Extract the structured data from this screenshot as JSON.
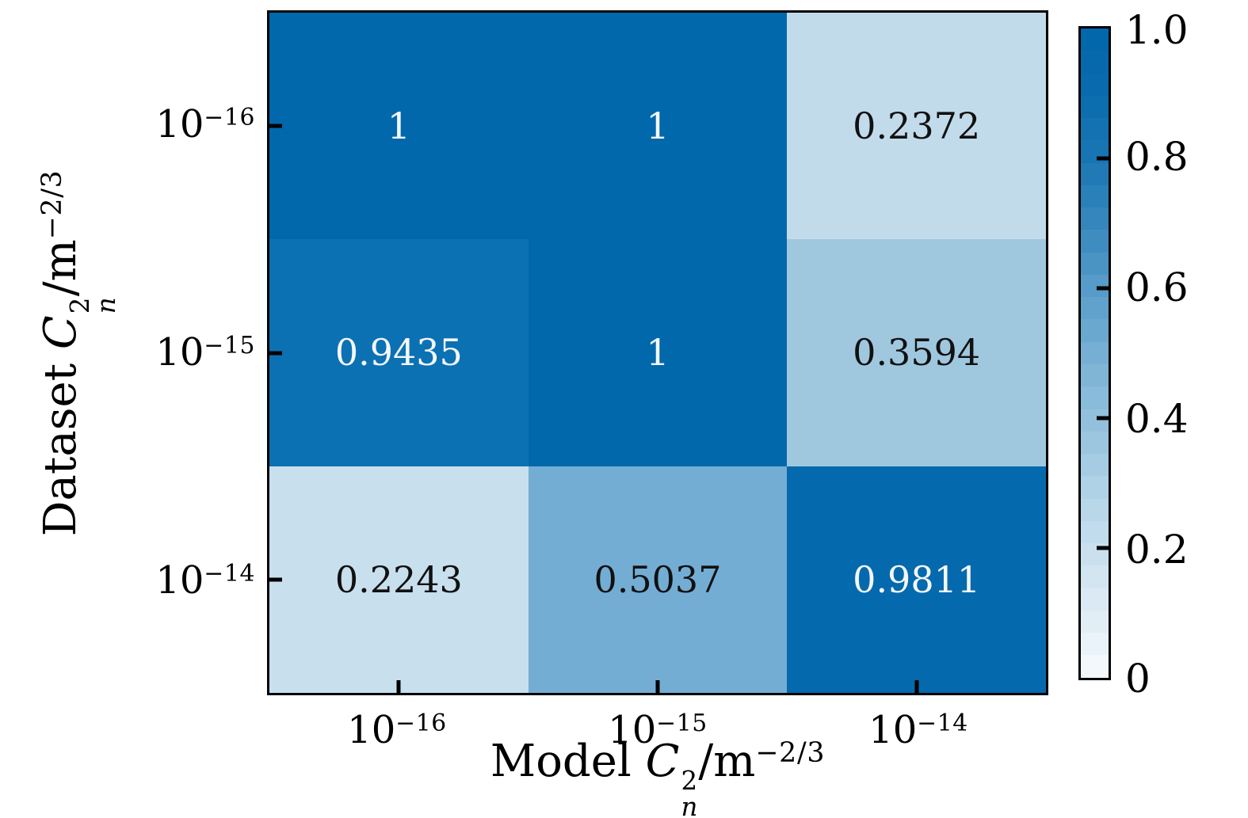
{
  "chart_data": {
    "type": "heatmap",
    "title": "",
    "xlabel": "Model Cn^2/m^(−2/3)",
    "ylabel": "Dataset Cn^2/m^(−2/3)",
    "x_categories": [
      "10^−16",
      "10^−15",
      "10^−14"
    ],
    "y_categories": [
      "10^−16",
      "10^−15",
      "10^−14"
    ],
    "values": [
      [
        1,
        1,
        0.2372
      ],
      [
        0.9435,
        1,
        0.3594
      ],
      [
        0.2243,
        0.5037,
        0.9811
      ]
    ],
    "cell_labels": [
      [
        "1",
        "1",
        "0.2372"
      ],
      [
        "0.9435",
        "1",
        "0.3594"
      ],
      [
        "0.2243",
        "0.5037",
        "0.9811"
      ]
    ],
    "cell_colors": [
      [
        "#0268ac",
        "#0268ac",
        "#c2dbeb"
      ],
      [
        "#0c71b3",
        "#0268ac",
        "#9fc8df"
      ],
      [
        "#c8dfee",
        "#74add3",
        "#0569ad"
      ]
    ],
    "cell_text_colors": [
      [
        "#f4f7fa",
        "#f4f7fa",
        "#111111"
      ],
      [
        "#f4f7fa",
        "#f4f7fa",
        "#111111"
      ],
      [
        "#111111",
        "#111111",
        "#f4f7fa"
      ]
    ],
    "x_ticklabels": [
      {
        "base": "10",
        "exp": "−16"
      },
      {
        "base": "10",
        "exp": "−15"
      },
      {
        "base": "10",
        "exp": "−14"
      }
    ],
    "y_ticklabels": [
      {
        "base": "10",
        "exp": "−16"
      },
      {
        "base": "10",
        "exp": "−15"
      },
      {
        "base": "10",
        "exp": "−14"
      }
    ],
    "xlabel_parts": {
      "prefix": "Model ",
      "sym": "C",
      "sup": "2",
      "sub": "n",
      "unit": "/m",
      "unit_exp": "−2/3"
    },
    "ylabel_parts": {
      "prefix": "Dataset ",
      "sym": "C",
      "sup": "2",
      "sub": "n",
      "unit": "/m",
      "unit_exp": "−2/3"
    },
    "grid": false,
    "colorbar": {
      "position": "right",
      "range": [
        0,
        1
      ],
      "n_bands": 29,
      "ticks": [
        {
          "label": "1.0",
          "value": 1.0
        },
        {
          "label": "0.8",
          "value": 0.8
        },
        {
          "label": "0.6",
          "value": 0.6
        },
        {
          "label": "0.4",
          "value": 0.4
        },
        {
          "label": "0.2",
          "value": 0.2
        },
        {
          "label": "0",
          "value": 0.0
        }
      ],
      "stops": [
        {
          "v": 0.0,
          "c": "#f6fafd"
        },
        {
          "v": 0.1,
          "c": "#dfecf5"
        },
        {
          "v": 0.2,
          "c": "#c8dfee"
        },
        {
          "v": 0.3,
          "c": "#add1e6"
        },
        {
          "v": 0.4,
          "c": "#92c0dd"
        },
        {
          "v": 0.5,
          "c": "#76afd3"
        },
        {
          "v": 0.6,
          "c": "#579cc9"
        },
        {
          "v": 0.7,
          "c": "#3687bd"
        },
        {
          "v": 0.8,
          "c": "#1a76b4"
        },
        {
          "v": 0.9,
          "c": "#0a6cae"
        },
        {
          "v": 1.0,
          "c": "#0266aa"
        }
      ]
    }
  }
}
